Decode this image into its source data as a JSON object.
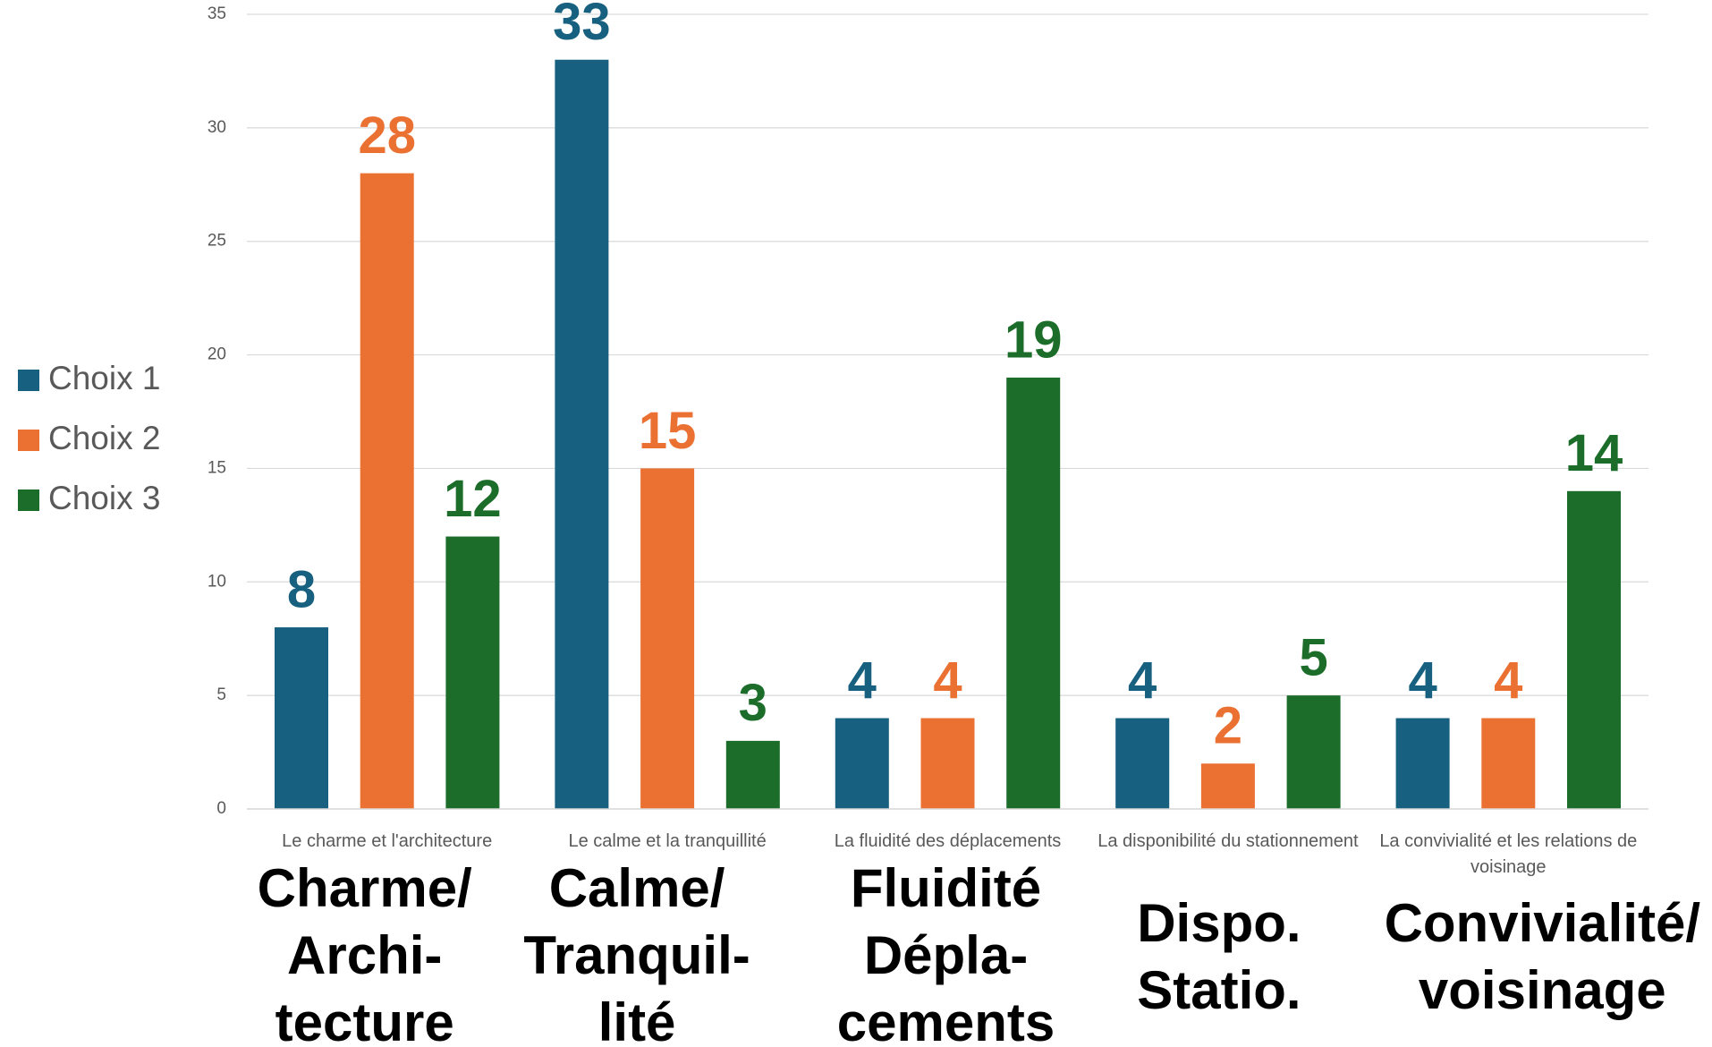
{
  "chart_data": {
    "type": "bar",
    "categories": [
      "Le charme et l'architecture",
      "Le calme et la tranquillité",
      "La fluidité des déplacements",
      "La disponibilité du stationnement",
      "La convivialité et les relations de voisinage"
    ],
    "series": [
      {
        "name": "Choix 1",
        "color": "#17607f",
        "values": [
          8,
          33,
          4,
          4,
          4
        ]
      },
      {
        "name": "Choix 2",
        "color": "#ea7132",
        "values": [
          28,
          15,
          4,
          2,
          4
        ]
      },
      {
        "name": "Choix 3",
        "color": "#1d6d2a",
        "values": [
          12,
          3,
          19,
          5,
          14
        ]
      }
    ],
    "annotations": [
      [
        "Charme/",
        "Archi-",
        "tecture"
      ],
      [
        "Calme/",
        "Tranquil-",
        "lité"
      ],
      [
        "Fluidité",
        "Dépla-",
        "cements"
      ],
      [
        "Dispo.",
        "Statio."
      ],
      [
        "Convivialité/",
        "voisinage"
      ]
    ],
    "ylim": [
      0,
      35
    ],
    "yticks": [
      0,
      5,
      10,
      15,
      20,
      25,
      30,
      35
    ],
    "grid": true,
    "legend": "left"
  }
}
